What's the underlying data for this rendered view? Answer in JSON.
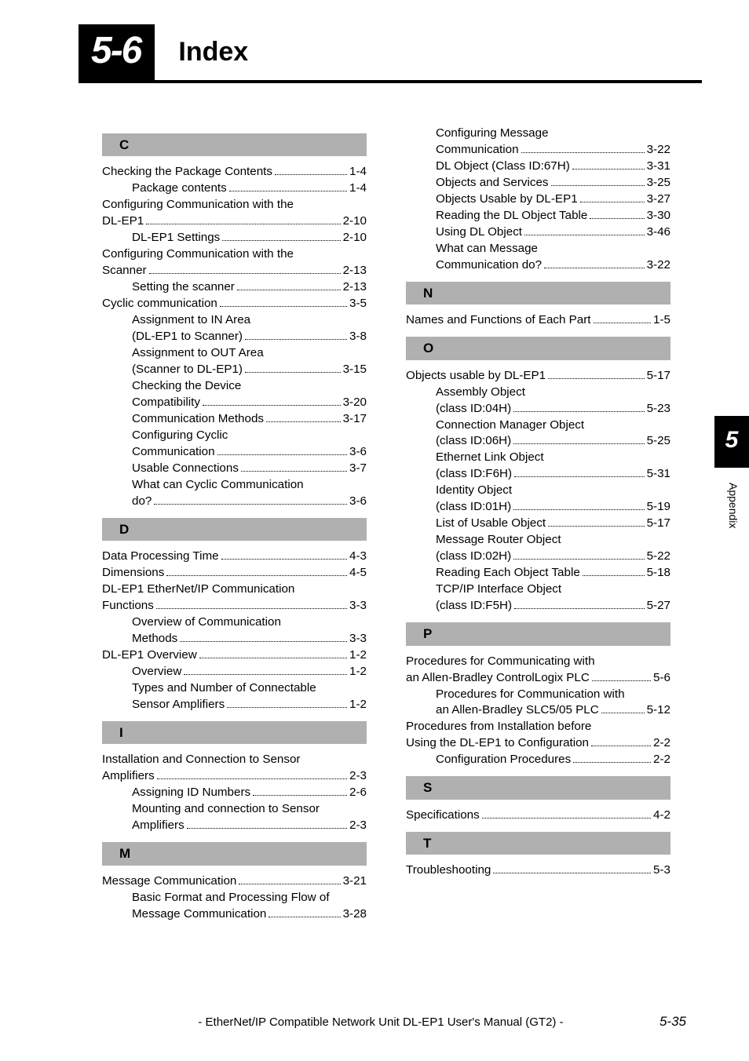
{
  "header": {
    "section_number": "5-6",
    "section_title": "Index"
  },
  "side_tab": {
    "chapter": "5",
    "label": "Appendix"
  },
  "footer": {
    "title": "- EtherNet/IP Compatible Network Unit DL-EP1 User's Manual (GT2) -",
    "page": "5-35"
  },
  "letters": {
    "C": "C",
    "D": "D",
    "I": "I",
    "M": "M",
    "N": "N",
    "O": "O",
    "P": "P",
    "S": "S",
    "T": "T"
  },
  "entries": {
    "c1": {
      "t": "Checking the Package Contents",
      "p": "1-4"
    },
    "c1a": {
      "t": "Package contents",
      "p": "1-4"
    },
    "c2": {
      "t": "Configuring Communication with the"
    },
    "c2b": {
      "t": "DL-EP1",
      "p": "2-10"
    },
    "c2c": {
      "t": "DL-EP1 Settings",
      "p": "2-10"
    },
    "c3": {
      "t": "Configuring Communication with the"
    },
    "c3b": {
      "t": "Scanner",
      "p": "2-13"
    },
    "c3c": {
      "t": "Setting the scanner",
      "p": "2-13"
    },
    "c4": {
      "t": "Cyclic communication",
      "p": "3-5"
    },
    "c4a": {
      "t": "Assignment to IN Area"
    },
    "c4b": {
      "t": "(DL-EP1 to Scanner)",
      "p": "3-8"
    },
    "c4c": {
      "t": "Assignment to OUT Area"
    },
    "c4d": {
      "t": "(Scanner to DL-EP1)",
      "p": "3-15"
    },
    "c4e": {
      "t": "Checking the Device"
    },
    "c4f": {
      "t": "Compatibility",
      "p": "3-20"
    },
    "c4g": {
      "t": "Communication Methods",
      "p": "3-17"
    },
    "c4h": {
      "t": "Configuring Cyclic"
    },
    "c4i": {
      "t": "Communication",
      "p": "3-6"
    },
    "c4j": {
      "t": "Usable Connections",
      "p": "3-7"
    },
    "c4k": {
      "t": "What can Cyclic Communication"
    },
    "c4l": {
      "t": "do?",
      "p": "3-6"
    },
    "d1": {
      "t": "Data Processing Time",
      "p": "4-3"
    },
    "d2": {
      "t": "Dimensions",
      "p": "4-5"
    },
    "d3": {
      "t": "DL-EP1 EtherNet/IP Communication"
    },
    "d3b": {
      "t": "Functions",
      "p": "3-3"
    },
    "d3c": {
      "t": "Overview of Communication"
    },
    "d3d": {
      "t": "Methods",
      "p": "3-3"
    },
    "d4": {
      "t": "DL-EP1 Overview",
      "p": "1-2"
    },
    "d4a": {
      "t": "Overview",
      "p": "1-2"
    },
    "d4b": {
      "t": "Types and Number of Connectable"
    },
    "d4c": {
      "t": "Sensor Amplifiers",
      "p": "1-2"
    },
    "i1": {
      "t": "Installation and Connection to Sensor"
    },
    "i1b": {
      "t": "Amplifiers",
      "p": "2-3"
    },
    "i1c": {
      "t": "Assigning ID Numbers",
      "p": "2-6"
    },
    "i1d": {
      "t": "Mounting and connection to Sensor"
    },
    "i1e": {
      "t": "Amplifiers",
      "p": "2-3"
    },
    "m1": {
      "t": "Message Communication",
      "p": "3-21"
    },
    "m1a": {
      "t": "Basic Format and Processing Flow of"
    },
    "m1b": {
      "t": "Message Communication",
      "p": "3-28"
    },
    "m1c": {
      "t": "Configuring Message"
    },
    "m1d": {
      "t": "Communication",
      "p": "3-22"
    },
    "m1e": {
      "t": "DL Object (Class ID:67H)",
      "p": "3-31"
    },
    "m1f": {
      "t": "Objects and Services",
      "p": "3-25"
    },
    "m1g": {
      "t": "Objects Usable by DL-EP1",
      "p": "3-27"
    },
    "m1h": {
      "t": "Reading the DL Object Table",
      "p": "3-30"
    },
    "m1i": {
      "t": "Using DL Object",
      "p": "3-46"
    },
    "m1j": {
      "t": "What can Message"
    },
    "m1k": {
      "t": "Communication do?",
      "p": "3-22"
    },
    "n1": {
      "t": "Names and Functions of Each Part",
      "p": "1-5"
    },
    "o1": {
      "t": "Objects usable by DL-EP1",
      "p": "5-17"
    },
    "o1a": {
      "t": "Assembly Object"
    },
    "o1b": {
      "t": "(class ID:04H)",
      "p": "5-23"
    },
    "o1c": {
      "t": "Connection Manager Object"
    },
    "o1d": {
      "t": "(class ID:06H)",
      "p": "5-25"
    },
    "o1e": {
      "t": "Ethernet Link Object"
    },
    "o1f": {
      "t": "(class ID:F6H)",
      "p": "5-31"
    },
    "o1g": {
      "t": "Identity Object"
    },
    "o1h": {
      "t": "(class ID:01H)",
      "p": "5-19"
    },
    "o1i": {
      "t": "List of Usable Object",
      "p": "5-17"
    },
    "o1j": {
      "t": "Message Router Object"
    },
    "o1k": {
      "t": "(class ID:02H)",
      "p": "5-22"
    },
    "o1l": {
      "t": "Reading Each Object Table",
      "p": "5-18"
    },
    "o1m": {
      "t": "TCP/IP Interface Object"
    },
    "o1n": {
      "t": "(class ID:F5H)",
      "p": "5-27"
    },
    "p1": {
      "t": "Procedures for Communicating with"
    },
    "p1b": {
      "t": "an Allen-Bradley ControlLogix PLC",
      "p": "5-6"
    },
    "p1c": {
      "t": "Procedures for Communication with"
    },
    "p1d": {
      "t": "an Allen-Bradley SLC5/05 PLC",
      "p": "5-12"
    },
    "p2": {
      "t": "Procedures from Installation before"
    },
    "p2b": {
      "t": "Using the DL-EP1 to Configuration",
      "p": "2-2"
    },
    "p2c": {
      "t": "Configuration Procedures",
      "p": "2-2"
    },
    "s1": {
      "t": "Specifications",
      "p": "4-2"
    },
    "t1": {
      "t": "Troubleshooting",
      "p": "5-3"
    }
  }
}
